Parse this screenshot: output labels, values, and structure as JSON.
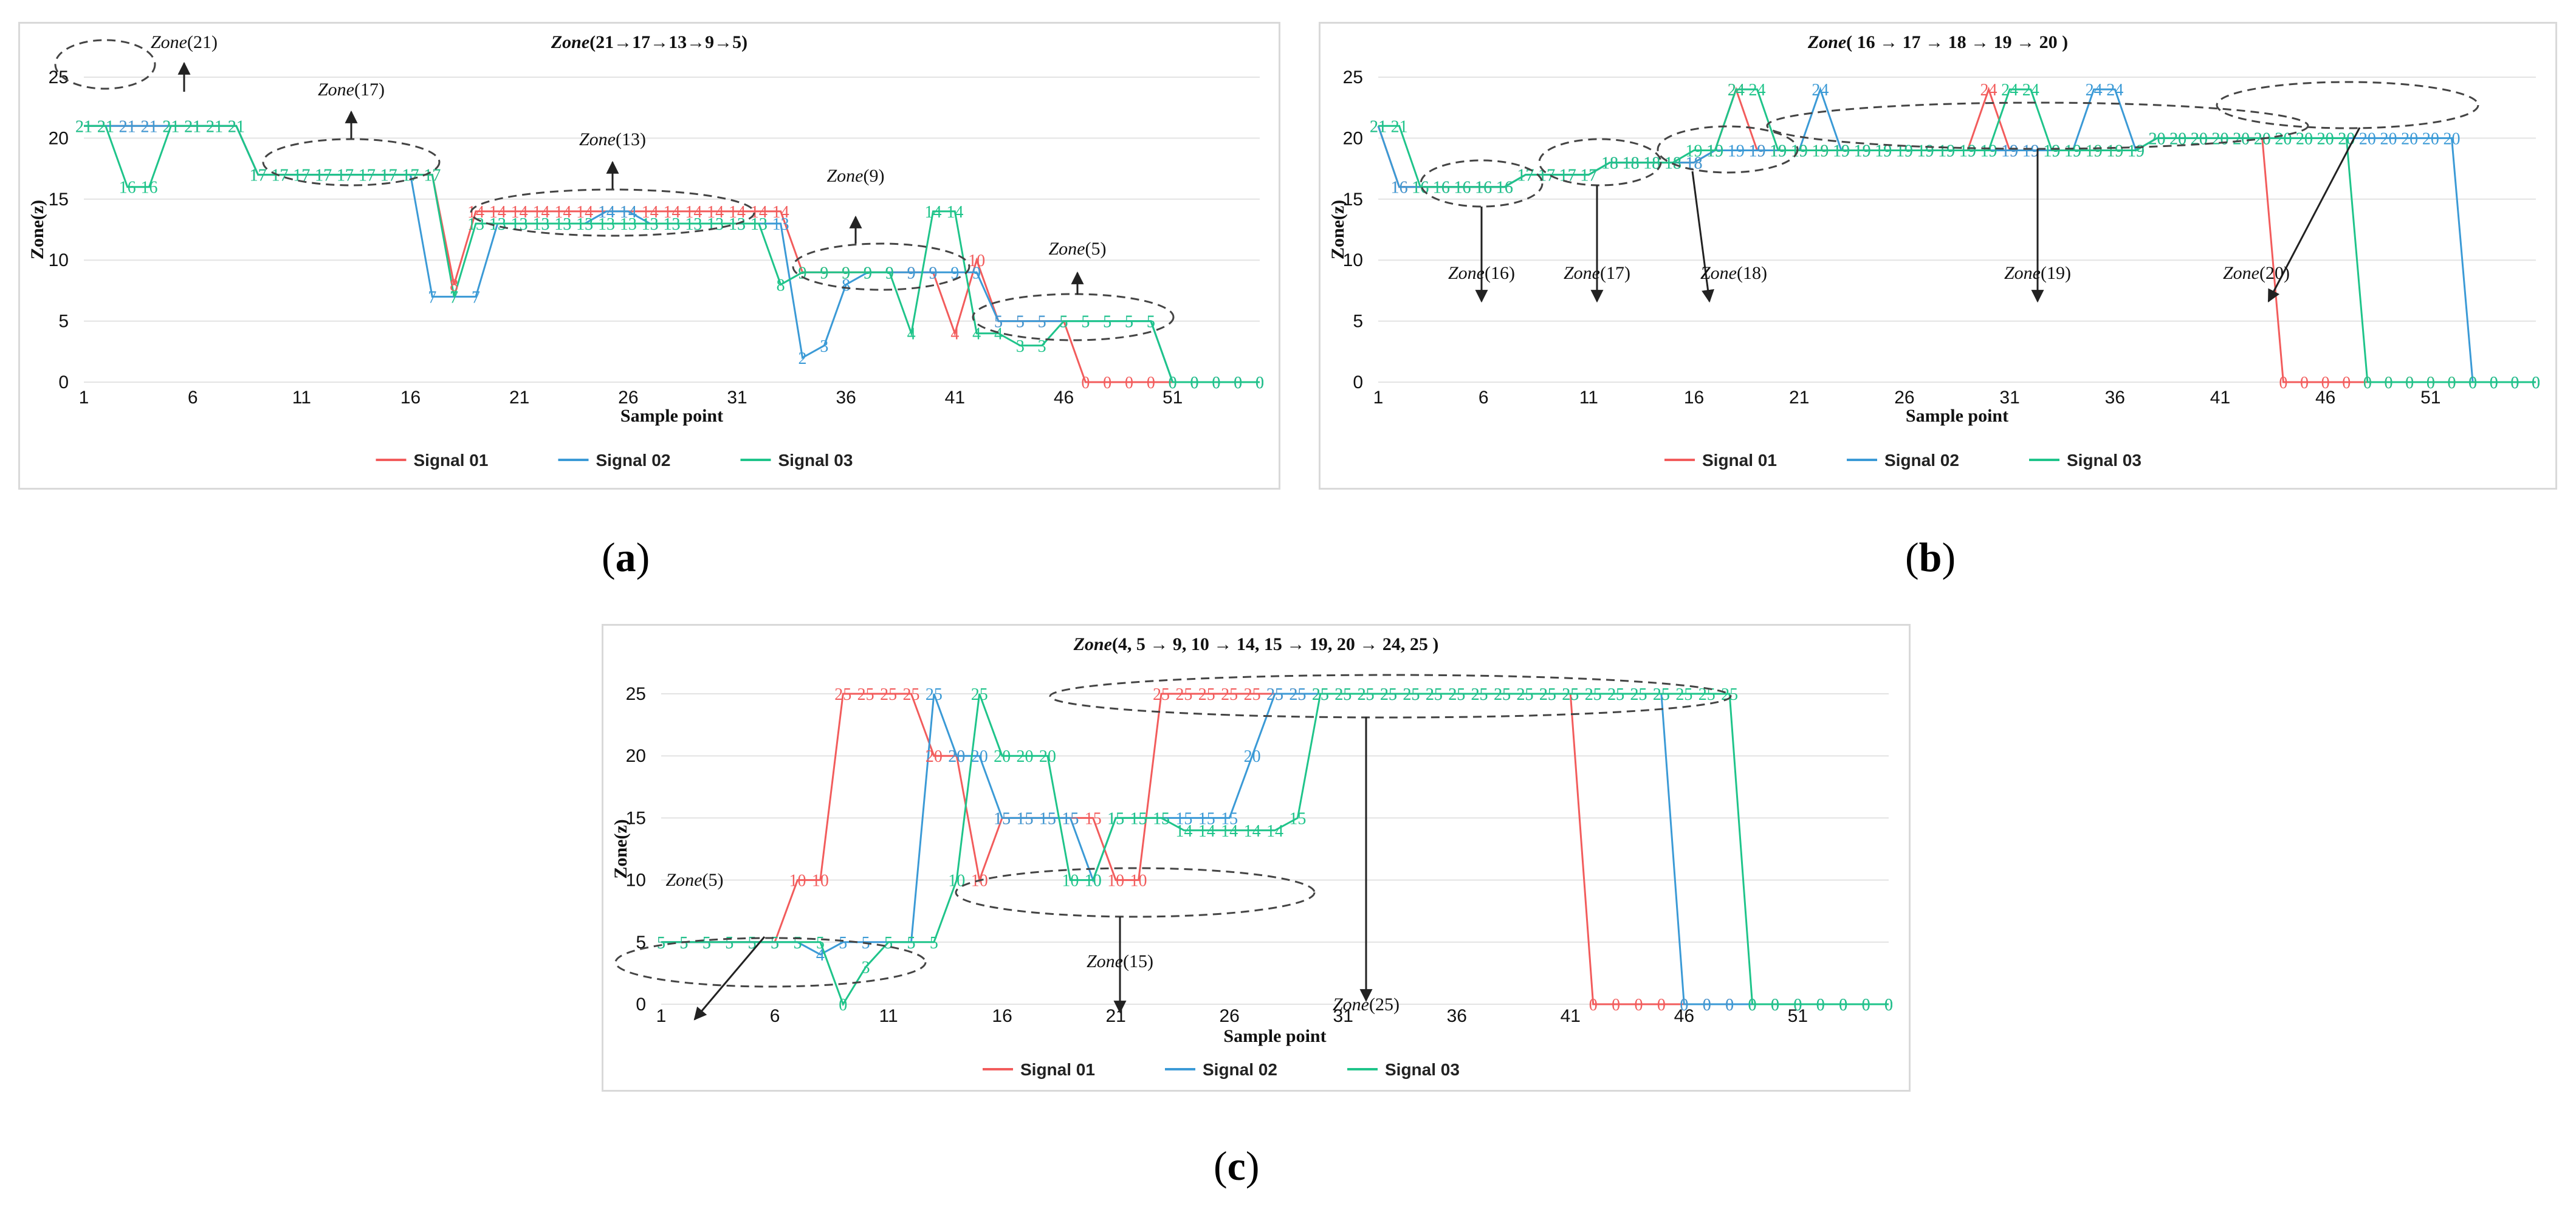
{
  "chart_data": [
    {
      "id": "a",
      "type": "line",
      "title": "Zone(21→17→13→9→5)",
      "title_prefix": "Zone",
      "title_rest": "(21→17→13→9→5)",
      "xlabel": "Sample point",
      "ylabel": "Zone(z)",
      "xlim": [
        1,
        55
      ],
      "ylim": [
        0,
        25
      ],
      "yticks": [
        0,
        5,
        10,
        15,
        20,
        25
      ],
      "xticks": [
        1,
        6,
        11,
        16,
        21,
        26,
        31,
        36,
        41,
        46,
        51
      ],
      "series": [
        {
          "name": "Signal 01",
          "color": "#f25c5c",
          "values": [
            21,
            21,
            21,
            21,
            21,
            21,
            21,
            21,
            17,
            17,
            17,
            17,
            17,
            17,
            17,
            17,
            17,
            8,
            14,
            14,
            14,
            14,
            14,
            14,
            14,
            14,
            14,
            14,
            14,
            14,
            14,
            14,
            14,
            9,
            9,
            9,
            9,
            9,
            9,
            9,
            4,
            10,
            5,
            5,
            5,
            5,
            0,
            0,
            0,
            0,
            0,
            0,
            0,
            0,
            0
          ]
        },
        {
          "name": "Signal 02",
          "color": "#3b9ad6",
          "values": [
            21,
            21,
            21,
            21,
            21,
            21,
            21,
            21,
            17,
            17,
            17,
            17,
            17,
            17,
            17,
            17,
            7,
            7,
            7,
            13,
            13,
            13,
            13,
            13,
            14,
            14,
            13,
            13,
            13,
            13,
            13,
            13,
            13,
            2,
            3,
            8,
            9,
            9,
            9,
            9,
            9,
            9,
            5,
            5,
            5,
            5,
            5,
            5,
            5,
            5,
            0,
            0,
            0,
            0,
            0
          ]
        },
        {
          "name": "Signal 03",
          "color": "#1fc48a",
          "values": [
            21,
            21,
            16,
            16,
            21,
            21,
            21,
            21,
            17,
            17,
            17,
            17,
            17,
            17,
            17,
            17,
            17,
            7,
            13,
            13,
            13,
            13,
            13,
            13,
            13,
            13,
            13,
            13,
            13,
            13,
            13,
            13,
            8,
            9,
            9,
            9,
            9,
            9,
            4,
            14,
            14,
            4,
            4,
            3,
            3,
            5,
            5,
            5,
            5,
            5,
            0,
            0,
            0,
            0,
            0
          ]
        }
      ],
      "annotations": [
        {
          "label": "Zone(21)",
          "prefix": "Zone",
          "rest": "(21)"
        },
        {
          "label": "Zone(17)",
          "prefix": "Zone",
          "rest": "(17)"
        },
        {
          "label": "Zone(13)",
          "prefix": "Zone",
          "rest": "(13)"
        },
        {
          "label": "Zone(9)",
          "prefix": "Zone",
          "rest": "(9)"
        },
        {
          "label": "Zone(5)",
          "prefix": "Zone",
          "rest": "(5)"
        }
      ],
      "legend": "bottom"
    },
    {
      "id": "b",
      "type": "line",
      "title": "Zone( 16 → 17 → 18 → 19 → 20 )",
      "title_prefix": "Zone",
      "title_rest": "( 16 → 17 → 18 → 19 → 20 )",
      "xlabel": "Sample point",
      "ylabel": "Zone(z)",
      "xlim": [
        1,
        56
      ],
      "ylim": [
        0,
        25
      ],
      "yticks": [
        0,
        5,
        10,
        15,
        20,
        25
      ],
      "xticks": [
        1,
        6,
        11,
        16,
        21,
        26,
        31,
        36,
        41,
        46,
        51
      ],
      "series": [
        {
          "name": "Signal 01",
          "color": "#f25c5c",
          "values": [
            21,
            16,
            16,
            16,
            16,
            16,
            16,
            17,
            17,
            17,
            17,
            18,
            18,
            18,
            18,
            18,
            19,
            24,
            19,
            19,
            19,
            19,
            19,
            19,
            19,
            19,
            19,
            19,
            19,
            24,
            19,
            19,
            19,
            19,
            19,
            19,
            19,
            20,
            20,
            20,
            20,
            20,
            20,
            0,
            0,
            0,
            0,
            0,
            0,
            0,
            0,
            0,
            0,
            0,
            0,
            0
          ]
        },
        {
          "name": "Signal 02",
          "color": "#3b9ad6",
          "values": [
            21,
            16,
            16,
            16,
            16,
            16,
            16,
            17,
            17,
            17,
            17,
            18,
            18,
            18,
            18,
            18,
            19,
            19,
            19,
            19,
            19,
            24,
            19,
            19,
            19,
            19,
            19,
            19,
            19,
            19,
            19,
            19,
            19,
            19,
            24,
            24,
            19,
            20,
            20,
            20,
            20,
            20,
            20,
            20,
            20,
            20,
            20,
            20,
            20,
            20,
            20,
            20,
            0,
            0,
            0,
            0
          ]
        },
        {
          "name": "Signal 03",
          "color": "#1fc48a",
          "values": [
            21,
            21,
            16,
            16,
            16,
            16,
            16,
            17,
            17,
            17,
            17,
            18,
            18,
            18,
            18,
            19,
            19,
            24,
            24,
            19,
            19,
            19,
            19,
            19,
            19,
            19,
            19,
            19,
            19,
            19,
            24,
            24,
            19,
            19,
            19,
            19,
            19,
            20,
            20,
            20,
            20,
            20,
            20,
            20,
            20,
            20,
            20,
            0,
            0,
            0,
            0,
            0,
            0,
            0,
            0,
            0
          ]
        }
      ],
      "annotations": [
        {
          "label": "Zone(16)",
          "prefix": "Zone",
          "rest": "(16)"
        },
        {
          "label": "Zone(17)",
          "prefix": "Zone",
          "rest": "(17)"
        },
        {
          "label": "Zone(18)",
          "prefix": "Zone",
          "rest": "(18)"
        },
        {
          "label": "Zone(19)",
          "prefix": "Zone",
          "rest": "(19)"
        },
        {
          "label": "Zone(20)",
          "prefix": "Zone",
          "rest": "(20)"
        }
      ],
      "legend": "bottom"
    },
    {
      "id": "c",
      "type": "line",
      "title": "Zone(4, 5 → 9, 10 → 14, 15 → 19, 20 → 24, 25 )",
      "title_prefix": "Zone",
      "title_rest": "(4, 5 → 9, 10 → 14, 15 → 19, 20 → 24, 25 )",
      "xlabel": "Sample point",
      "ylabel": "Zone(z)",
      "xlim": [
        1,
        55
      ],
      "ylim": [
        0,
        25
      ],
      "yticks": [
        0,
        5,
        10,
        15,
        20,
        25
      ],
      "xticks": [
        1,
        6,
        11,
        16,
        21,
        26,
        31,
        36,
        41,
        46,
        51
      ],
      "series": [
        {
          "name": "Signal 01",
          "color": "#f25c5c",
          "values": [
            5,
            5,
            5,
            5,
            5,
            5,
            10,
            10,
            25,
            25,
            25,
            25,
            20,
            20,
            10,
            15,
            15,
            15,
            15,
            15,
            10,
            10,
            25,
            25,
            25,
            25,
            25,
            25,
            25,
            25,
            25,
            25,
            25,
            25,
            25,
            25,
            25,
            25,
            25,
            25,
            25,
            0,
            0,
            0,
            0,
            0,
            0,
            0,
            0,
            0,
            0,
            0,
            0,
            0,
            0
          ]
        },
        {
          "name": "Signal 02",
          "color": "#3b9ad6",
          "values": [
            5,
            5,
            5,
            5,
            5,
            5,
            5,
            4,
            5,
            5,
            5,
            5,
            25,
            20,
            20,
            15,
            15,
            15,
            15,
            10,
            15,
            15,
            15,
            15,
            15,
            15,
            20,
            25,
            25,
            25,
            25,
            25,
            25,
            25,
            25,
            25,
            25,
            25,
            25,
            25,
            25,
            25,
            25,
            25,
            25,
            0,
            0,
            0,
            0,
            0,
            0,
            0,
            0,
            0,
            0
          ]
        },
        {
          "name": "Signal 03",
          "color": "#1fc48a",
          "values": [
            5,
            5,
            5,
            5,
            5,
            5,
            5,
            5,
            0,
            3,
            5,
            5,
            5,
            10,
            25,
            20,
            20,
            20,
            10,
            10,
            15,
            15,
            15,
            14,
            14,
            14,
            14,
            14,
            15,
            25,
            25,
            25,
            25,
            25,
            25,
            25,
            25,
            25,
            25,
            25,
            25,
            25,
            25,
            25,
            25,
            25,
            25,
            25,
            0,
            0,
            0,
            0,
            0,
            0,
            0
          ]
        }
      ],
      "annotations": [
        {
          "label": "Zone(5)",
          "prefix": "Zone",
          "rest": "(5)"
        },
        {
          "label": "Zone(15)",
          "prefix": "Zone",
          "rest": "(15)"
        },
        {
          "label": "Zone(25)",
          "prefix": "Zone",
          "rest": "(25)"
        }
      ],
      "legend": "bottom"
    }
  ],
  "captions": {
    "a": {
      "open": "(",
      "letter": "a",
      "close": ")"
    },
    "b": {
      "open": "(",
      "letter": "b",
      "close": ")"
    },
    "c": {
      "open": "(",
      "letter": "c",
      "close": ")"
    }
  }
}
